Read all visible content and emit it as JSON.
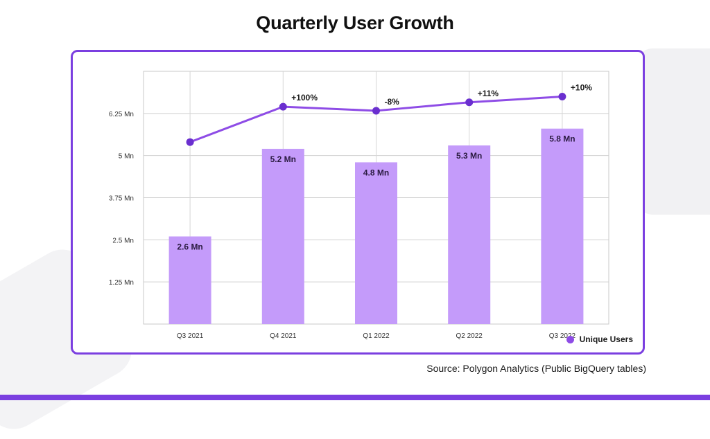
{
  "title": "Quarterly User Growth",
  "source": "Source: Polygon Analytics (Public BigQuery tables)",
  "colors": {
    "accent": "#7b3fe0",
    "bar": "#c49bfa",
    "line": "#8e4ce6",
    "point": "#6a2fcf"
  },
  "chart_data": {
    "type": "bar",
    "categories": [
      "Q3 2021",
      "Q4 2021",
      "Q1 2022",
      "Q2 2022",
      "Q3 2022"
    ],
    "series": [
      {
        "name": "Unique Users",
        "type": "bar",
        "values": [
          2.6,
          5.2,
          4.8,
          5.3,
          5.8
        ],
        "data_labels": [
          "2.6 Mn",
          "5.2 Mn",
          "4.8 Mn",
          "5.3 Mn",
          "5.8 Mn"
        ]
      },
      {
        "type": "line",
        "values": [
          5.4,
          6.45,
          6.33,
          6.58,
          6.75
        ],
        "data_labels": [
          "",
          "+100%",
          "-8%",
          "+11%",
          "+10%"
        ]
      }
    ],
    "y_ticks": [
      1.25,
      2.5,
      3.75,
      5,
      6.25
    ],
    "y_tick_labels": [
      "1.25 Mn",
      "2.5 Mn",
      "3.75 Mn",
      "5 Mn",
      "6.25 Mn"
    ],
    "ylim": [
      0,
      7.5
    ],
    "grid": true,
    "legend": "bottom-right",
    "xlabel": "",
    "ylabel": ""
  }
}
